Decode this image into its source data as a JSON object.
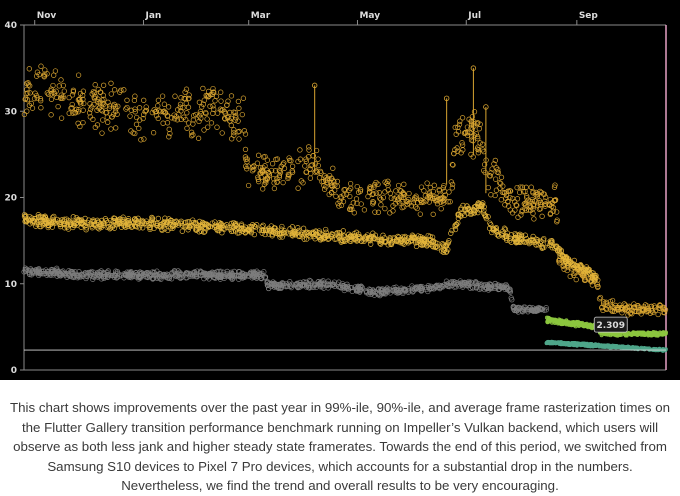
{
  "chart_data": {
    "type": "scatter",
    "x_ticks": [
      "Nov",
      "Jan",
      "Mar",
      "May",
      "Jul",
      "Sep"
    ],
    "x_tick_dates": [
      "2022-11-01",
      "2023-01-01",
      "2023-03-01",
      "2023-05-01",
      "2023-07-01",
      "2023-09-01"
    ],
    "xlim": [
      "2022-10-26",
      "2023-10-21"
    ],
    "y_ticks": [
      0,
      10,
      20,
      30,
      40
    ],
    "ylim": [
      0,
      40
    ],
    "grid": false,
    "threshold_line": 2.309,
    "tooltip": "2.309",
    "series": [
      {
        "color": "#d9a531",
        "marker": "hollow-circle",
        "points": [
          [
            "2022-10-26",
            33
          ],
          [
            "2022-11-15",
            32
          ],
          [
            "2022-12-15",
            30
          ],
          [
            "2023-01-15",
            29.5
          ],
          [
            "2023-02-10",
            30
          ],
          [
            "2023-02-26",
            29.5
          ],
          [
            "2023-02-28",
            23
          ],
          [
            "2023-03-25",
            23
          ],
          [
            "2023-04-05",
            24
          ],
          [
            "2023-04-20",
            20.5
          ],
          [
            "2023-05-15",
            20
          ],
          [
            "2023-06-05",
            20
          ],
          [
            "2023-06-22",
            20
          ],
          [
            "2023-06-25",
            27
          ],
          [
            "2023-07-02",
            27.5
          ],
          [
            "2023-07-08",
            27
          ],
          [
            "2023-07-12",
            22.5
          ],
          [
            "2023-07-20",
            22
          ],
          [
            "2023-07-25",
            19.5
          ],
          [
            "2023-08-20",
            19.5
          ],
          [
            "2023-08-22",
            13
          ],
          [
            "2023-09-05",
            11
          ],
          [
            "2023-09-12",
            10.5
          ],
          [
            "2023-09-15",
            7.5
          ],
          [
            "2023-10-01",
            7
          ],
          [
            "2023-10-21",
            7
          ]
        ]
      },
      {
        "color": "#e2b43a",
        "marker": "hollow-circle",
        "points": [
          [
            "2022-10-26",
            17.5
          ],
          [
            "2022-11-20",
            17
          ],
          [
            "2023-01-01",
            17
          ],
          [
            "2023-02-20",
            16.5
          ],
          [
            "2023-03-20",
            16
          ],
          [
            "2023-04-20",
            15.5
          ],
          [
            "2023-05-20",
            15
          ],
          [
            "2023-06-10",
            15
          ],
          [
            "2023-06-20",
            14
          ],
          [
            "2023-06-28",
            18.5
          ],
          [
            "2023-07-10",
            19
          ],
          [
            "2023-07-15",
            16.5
          ],
          [
            "2023-07-25",
            15.5
          ],
          [
            "2023-08-20",
            14.5
          ],
          [
            "2023-08-27",
            12.5
          ],
          [
            "2023-09-10",
            11
          ],
          [
            "2023-09-12",
            10.5
          ]
        ]
      },
      {
        "color": "#7d7d7d",
        "marker": "hollow-circle",
        "points": [
          [
            "2022-10-26",
            11.5
          ],
          [
            "2022-12-01",
            11
          ],
          [
            "2023-02-01",
            11
          ],
          [
            "2023-03-10",
            11
          ],
          [
            "2023-03-12",
            9.8
          ],
          [
            "2023-04-15",
            10
          ],
          [
            "2023-05-10",
            9
          ],
          [
            "2023-06-10",
            9.5
          ],
          [
            "2023-06-25",
            10
          ],
          [
            "2023-07-25",
            9.5
          ],
          [
            "2023-07-28",
            7
          ],
          [
            "2023-08-15",
            7
          ]
        ]
      },
      {
        "color": "#8cc63f",
        "marker": "hollow-circle",
        "points": [
          [
            "2023-08-15",
            5.8
          ],
          [
            "2023-09-12",
            5
          ],
          [
            "2023-09-15",
            4.2
          ],
          [
            "2023-10-21",
            4.2
          ]
        ]
      },
      {
        "color": "#4fa68a",
        "marker": "hollow-circle",
        "points": [
          [
            "2023-08-15",
            3.2
          ],
          [
            "2023-09-15",
            2.8
          ],
          [
            "2023-10-21",
            2.3
          ]
        ]
      }
    ]
  },
  "caption": "This chart shows improvements over the past year in 99%-ile, 90%-ile, and average frame rasterization times on the Flutter Gallery transition performance benchmark running on Impeller’s Vulkan backend, which users will observe as both less jank and higher steady state framerates. Towards the end of this period, we switched from Samsung S10 devices to Pixel 7 Pro devices, which accounts for a substantial drop in the numbers. Nevertheless, we find the trend and overall results to be very encouraging."
}
